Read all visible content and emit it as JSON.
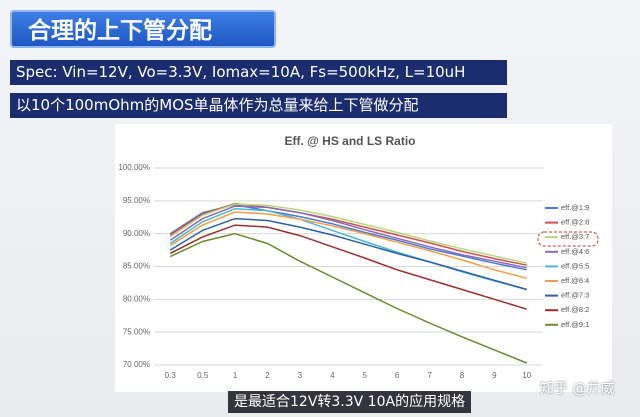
{
  "header": {
    "title": "合理的上下管分配",
    "spec": "Spec: Vin=12V, Vo=3.3V, Iomax=10A, Fs=500kHz, L=10uH",
    "note": "以10个100mOhm的MOS单晶体作为总量来给上下管做分配"
  },
  "chart_data": {
    "type": "line",
    "title": "Eff. @ HS and LS Ratio",
    "categories": [
      "0.3",
      "0.5",
      "1",
      "2",
      "3",
      "4",
      "5",
      "6",
      "7",
      "8",
      "9",
      "10"
    ],
    "ylim": [
      70,
      100
    ],
    "yticks": [
      {
        "value": 100,
        "label": "100.00%"
      },
      {
        "value": 95,
        "label": "95.00%"
      },
      {
        "value": 90,
        "label": "90.00%"
      },
      {
        "value": 85,
        "label": "85.00%"
      },
      {
        "value": 80,
        "label": "80.00%"
      },
      {
        "value": 75,
        "label": "75.00%"
      },
      {
        "value": 70,
        "label": "70.00%"
      }
    ],
    "grid": true,
    "legend": "right",
    "series": [
      {
        "name": "eff.@1:9",
        "color": "#4a7bd0",
        "values": [
          90.0,
          93.2,
          94.4,
          93.5,
          92.6,
          91.5,
          90.2,
          89.0,
          87.7,
          86.6,
          85.5,
          84.5
        ]
      },
      {
        "name": "eff.@2:8",
        "color": "#d0504d",
        "values": [
          89.8,
          93.0,
          94.6,
          94.0,
          93.2,
          92.2,
          91.0,
          89.8,
          88.6,
          87.3,
          86.2,
          85.2
        ]
      },
      {
        "name": "eff.@3:7",
        "color": "#b8d77a",
        "values": [
          89.5,
          92.8,
          94.5,
          94.3,
          93.6,
          92.6,
          91.4,
          90.2,
          88.9,
          87.7,
          86.6,
          85.5
        ]
      },
      {
        "name": "eff.@4:6",
        "color": "#8a6bb8",
        "values": [
          89.0,
          92.3,
          94.2,
          94.0,
          93.2,
          92.0,
          90.6,
          89.3,
          88.0,
          86.8,
          85.8,
          84.8
        ]
      },
      {
        "name": "eff.@5:5",
        "color": "#4bb6d6",
        "values": [
          88.5,
          91.8,
          93.8,
          93.5,
          92.2,
          90.5,
          88.8,
          87.2,
          85.7,
          84.2,
          82.8,
          81.5
        ]
      },
      {
        "name": "eff.@6:4",
        "color": "#f59d4a",
        "values": [
          88.2,
          91.3,
          93.3,
          93.0,
          92.2,
          91.2,
          90.0,
          88.7,
          87.4,
          86.0,
          84.5,
          83.2
        ]
      },
      {
        "name": "eff.@7:3",
        "color": "#2e5fa8",
        "values": [
          87.5,
          90.5,
          92.3,
          92.0,
          91.0,
          89.8,
          88.4,
          87.0,
          85.7,
          84.3,
          82.9,
          81.5
        ]
      },
      {
        "name": "eff.@8:2",
        "color": "#9c2f2c",
        "values": [
          87.0,
          89.5,
          91.3,
          91.0,
          89.7,
          88.0,
          86.3,
          84.5,
          83.0,
          81.5,
          80.0,
          78.5
        ]
      },
      {
        "name": "eff.@9:1",
        "color": "#6b8a2e",
        "values": [
          86.5,
          88.8,
          90.0,
          88.5,
          85.8,
          83.4,
          81.0,
          78.6,
          76.4,
          74.3,
          72.3,
          70.3
        ]
      }
    ]
  },
  "watermark": "知乎 @井威",
  "caption": "是最适合12V转3.3V 10A的应用规格"
}
